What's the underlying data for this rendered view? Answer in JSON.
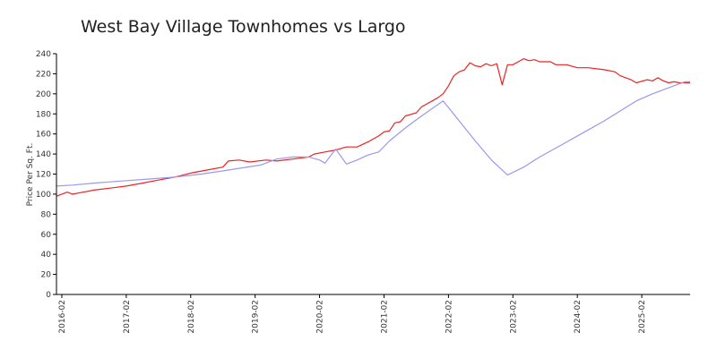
{
  "chart_data": {
    "type": "line",
    "title": "West Bay Village Townhomes vs Largo",
    "xlabel": "",
    "ylabel": "Price Per Sq. Ft.",
    "ylim": [
      0,
      240
    ],
    "xlim": [
      "2016-01",
      "2025-11"
    ],
    "y_ticks": [
      "0",
      "20",
      "40",
      "60",
      "80",
      "100",
      "120",
      "140",
      "160",
      "180",
      "200",
      "220",
      "240"
    ],
    "x_ticks": [
      "2016-02",
      "2017-02",
      "2018-02",
      "2019-02",
      "2020-02",
      "2021-02",
      "2022-02",
      "2023-02",
      "2024-02",
      "2025-02"
    ],
    "grid": false,
    "legend": "none",
    "series": [
      {
        "color": "#ee2222",
        "points": [
          [
            "2016-01",
            98
          ],
          [
            "2016-03",
            102
          ],
          [
            "2016-04",
            100
          ],
          [
            "2016-06",
            102
          ],
          [
            "2016-08",
            104
          ],
          [
            "2016-11",
            106
          ],
          [
            "2017-02",
            108
          ],
          [
            "2017-05",
            111
          ],
          [
            "2017-08",
            114
          ],
          [
            "2017-11",
            117
          ],
          [
            "2018-02",
            121
          ],
          [
            "2018-05",
            124
          ],
          [
            "2018-08",
            127
          ],
          [
            "2018-09",
            133
          ],
          [
            "2018-11",
            134
          ],
          [
            "2019-01",
            132
          ],
          [
            "2019-04",
            134
          ],
          [
            "2019-06",
            133
          ],
          [
            "2019-09",
            135
          ],
          [
            "2019-12",
            137
          ],
          [
            "2020-01",
            140
          ],
          [
            "2020-03",
            142
          ],
          [
            "2020-05",
            144
          ],
          [
            "2020-07",
            147
          ],
          [
            "2020-09",
            147
          ],
          [
            "2020-11",
            152
          ],
          [
            "2021-01",
            158
          ],
          [
            "2021-02",
            162
          ],
          [
            "2021-03",
            163
          ],
          [
            "2021-04",
            171
          ],
          [
            "2021-05",
            172
          ],
          [
            "2021-06",
            178
          ],
          [
            "2021-08",
            181
          ],
          [
            "2021-09",
            187
          ],
          [
            "2021-11",
            193
          ],
          [
            "2021-12",
            196
          ],
          [
            "2022-01",
            200
          ],
          [
            "2022-02",
            208
          ],
          [
            "2022-03",
            218
          ],
          [
            "2022-04",
            222
          ],
          [
            "2022-05",
            224
          ],
          [
            "2022-06",
            231
          ],
          [
            "2022-07",
            228
          ],
          [
            "2022-08",
            227
          ],
          [
            "2022-09",
            230
          ],
          [
            "2022-10",
            228
          ],
          [
            "2022-11",
            230
          ],
          [
            "2022-12",
            209
          ],
          [
            "2023-01",
            229
          ],
          [
            "2023-02",
            229
          ],
          [
            "2023-03",
            232
          ],
          [
            "2023-04",
            235
          ],
          [
            "2023-05",
            233
          ],
          [
            "2023-06",
            234
          ],
          [
            "2023-07",
            232
          ],
          [
            "2023-09",
            232
          ],
          [
            "2023-10",
            229
          ],
          [
            "2023-12",
            229
          ],
          [
            "2024-02",
            226
          ],
          [
            "2024-04",
            226
          ],
          [
            "2024-07",
            224
          ],
          [
            "2024-09",
            222
          ],
          [
            "2024-10",
            218
          ],
          [
            "2024-12",
            214
          ],
          [
            "2025-01",
            211
          ],
          [
            "2025-03",
            214
          ],
          [
            "2025-04",
            213
          ],
          [
            "2025-05",
            216
          ],
          [
            "2025-06",
            213
          ],
          [
            "2025-07",
            211
          ],
          [
            "2025-08",
            212
          ],
          [
            "2025-09",
            211
          ],
          [
            "2025-11",
            211
          ]
        ]
      },
      {
        "color": "#9999ee",
        "points": [
          [
            "2016-01",
            108
          ],
          [
            "2016-04",
            109
          ],
          [
            "2016-08",
            111
          ],
          [
            "2017-01",
            113
          ],
          [
            "2017-06",
            115
          ],
          [
            "2017-11",
            117
          ],
          [
            "2018-04",
            120
          ],
          [
            "2018-09",
            124
          ],
          [
            "2019-03",
            129
          ],
          [
            "2019-06",
            135
          ],
          [
            "2019-09",
            137
          ],
          [
            "2019-12",
            137
          ],
          [
            "2020-02",
            134
          ],
          [
            "2020-03",
            131
          ],
          [
            "2020-05",
            145
          ],
          [
            "2020-07",
            130
          ],
          [
            "2020-09",
            134
          ],
          [
            "2020-11",
            139
          ],
          [
            "2021-01",
            142
          ],
          [
            "2021-03",
            153
          ],
          [
            "2021-06",
            166
          ],
          [
            "2021-09",
            178
          ],
          [
            "2022-01",
            193
          ],
          [
            "2022-04",
            173
          ],
          [
            "2022-07",
            153
          ],
          [
            "2022-10",
            134
          ],
          [
            "2023-01",
            119
          ],
          [
            "2023-04",
            127
          ],
          [
            "2023-07",
            137
          ],
          [
            "2023-10",
            146
          ],
          [
            "2024-01",
            155
          ],
          [
            "2024-04",
            164
          ],
          [
            "2024-07",
            173
          ],
          [
            "2024-10",
            183
          ],
          [
            "2025-01",
            193
          ],
          [
            "2025-04",
            200
          ],
          [
            "2025-07",
            206
          ],
          [
            "2025-10",
            212
          ],
          [
            "2025-11",
            212
          ]
        ]
      }
    ]
  }
}
